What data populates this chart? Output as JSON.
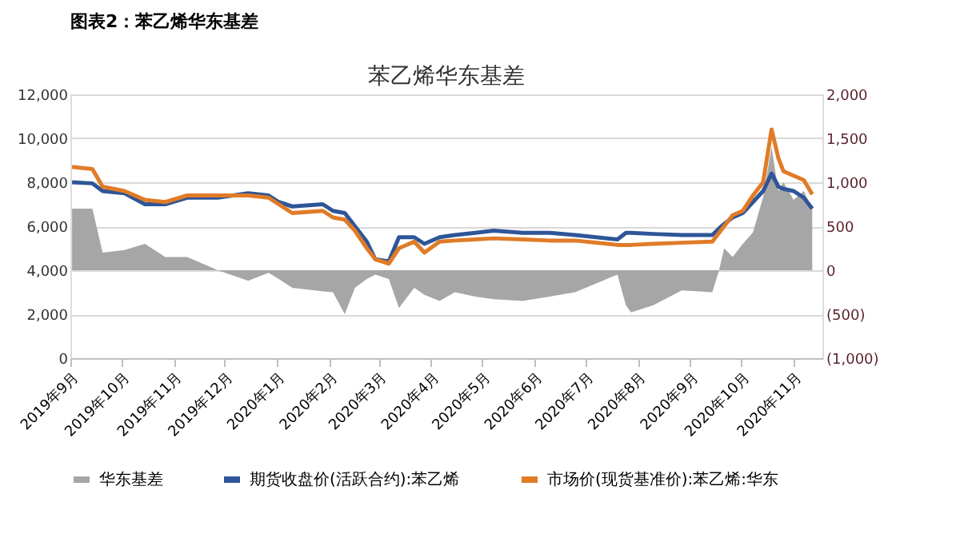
{
  "chart_data": {
    "type": "line",
    "title": "图表2：苯乙烯华东基差",
    "subtitle": "苯乙烯华东基差",
    "x": [
      "2019-09-02",
      "2019-09-14",
      "2019-09-20",
      "2019-10-03",
      "2019-10-15",
      "2019-10-27",
      "2019-11-09",
      "2019-11-27",
      "2019-12-15",
      "2019-12-27",
      "2020-01-02",
      "2020-01-10",
      "2020-01-28",
      "2020-02-03",
      "2020-02-10",
      "2020-02-16",
      "2020-02-23",
      "2020-02-28",
      "2020-03-07",
      "2020-03-13",
      "2020-03-22",
      "2020-03-28",
      "2020-04-06",
      "2020-04-15",
      "2020-04-27",
      "2020-05-08",
      "2020-05-25",
      "2020-06-10",
      "2020-06-25",
      "2020-07-20",
      "2020-07-25",
      "2020-07-28",
      "2020-08-10",
      "2020-08-27",
      "2020-09-14",
      "2020-09-18",
      "2020-09-21",
      "2020-09-26",
      "2020-10-02",
      "2020-10-08",
      "2020-10-14",
      "2020-10-19",
      "2020-10-23",
      "2020-10-26",
      "2020-11-01",
      "2020-11-07",
      "2020-11-12"
    ],
    "series": [
      {
        "name": "华东基差",
        "type": "area",
        "axis": "y2",
        "color": "#a6a6a6",
        "values": [
          700,
          700,
          200,
          230,
          300,
          150,
          150,
          0,
          -120,
          -30,
          -100,
          -200,
          -240,
          -250,
          -500,
          -200,
          -100,
          -50,
          -100,
          -430,
          -200,
          -280,
          -350,
          -250,
          -300,
          -330,
          -350,
          -300,
          -250,
          -50,
          -400,
          -480,
          -400,
          -230,
          -250,
          0,
          250,
          150,
          300,
          430,
          830,
          1400,
          900,
          1000,
          800,
          900,
          700
        ]
      },
      {
        "name": "期货收盘价(活跃合约):苯乙烯",
        "color": "#2e5597",
        "values": [
          8000,
          7950,
          7600,
          7500,
          7000,
          7000,
          7300,
          7300,
          7500,
          7400,
          7100,
          6900,
          7000,
          6700,
          6600,
          6000,
          5300,
          4500,
          4400,
          5500,
          5500,
          5200,
          5500,
          5600,
          5700,
          5800,
          5700,
          5700,
          5600,
          5400,
          5700,
          5700,
          5650,
          5600,
          5600,
          5900,
          6100,
          6400,
          6600,
          7100,
          7600,
          8400,
          7800,
          7700,
          7600,
          7300,
          6800
        ]
      },
      {
        "name": "市场价(现货基准价):苯乙烯:华东",
        "color": "#e07b27",
        "values": [
          8700,
          8600,
          7800,
          7600,
          7200,
          7100,
          7400,
          7400,
          7400,
          7300,
          7000,
          6600,
          6700,
          6400,
          6300,
          5800,
          5000,
          4500,
          4300,
          5000,
          5300,
          4800,
          5300,
          5350,
          5400,
          5450,
          5400,
          5350,
          5350,
          5150,
          5150,
          5150,
          5200,
          5250,
          5300,
          5700,
          6000,
          6500,
          6700,
          7400,
          8000,
          10400,
          9100,
          8500,
          8300,
          8100,
          7450
        ]
      }
    ],
    "xlim": [
      "2019-09-01",
      "2020-11-18"
    ],
    "xticks": [
      {
        "value": "2019-09-01",
        "label": "2019年9月"
      },
      {
        "value": "2019-10-01",
        "label": "2019年10月"
      },
      {
        "value": "2019-11-01",
        "label": "2019年11月"
      },
      {
        "value": "2019-12-01",
        "label": "2019年12月"
      },
      {
        "value": "2020-01-01",
        "label": "2020年1月"
      },
      {
        "value": "2020-02-01",
        "label": "2020年2月"
      },
      {
        "value": "2020-03-01",
        "label": "2020年3月"
      },
      {
        "value": "2020-04-01",
        "label": "2020年4月"
      },
      {
        "value": "2020-05-01",
        "label": "2020年5月"
      },
      {
        "value": "2020-06-01",
        "label": "2020年6月"
      },
      {
        "value": "2020-07-01",
        "label": "2020年7月"
      },
      {
        "value": "2020-08-01",
        "label": "2020年8月"
      },
      {
        "value": "2020-09-01",
        "label": "2020年9月"
      },
      {
        "value": "2020-10-01",
        "label": "2020年10月"
      },
      {
        "value": "2020-11-01",
        "label": "2020年11月"
      }
    ],
    "ylim": [
      0,
      12000
    ],
    "yticks": [
      {
        "value": 0,
        "label": "0"
      },
      {
        "value": 2000,
        "label": "2,000"
      },
      {
        "value": 4000,
        "label": "4,000"
      },
      {
        "value": 6000,
        "label": "6,000"
      },
      {
        "value": 8000,
        "label": "8,000"
      },
      {
        "value": 10000,
        "label": "10,000"
      },
      {
        "value": 12000,
        "label": "12,000"
      }
    ],
    "y2lim": [
      -1000,
      2000
    ],
    "y2ticks": [
      {
        "value": -1000,
        "label": "(1,000)"
      },
      {
        "value": -500,
        "label": "(500)"
      },
      {
        "value": 0,
        "label": "0"
      },
      {
        "value": 500,
        "label": "500"
      },
      {
        "value": 1000,
        "label": "1,000"
      },
      {
        "value": 1500,
        "label": "1,500"
      },
      {
        "value": 2000,
        "label": "2,000"
      }
    ],
    "grid": "y",
    "legend": "bottom",
    "line_style": "solid",
    "marker": "none"
  }
}
